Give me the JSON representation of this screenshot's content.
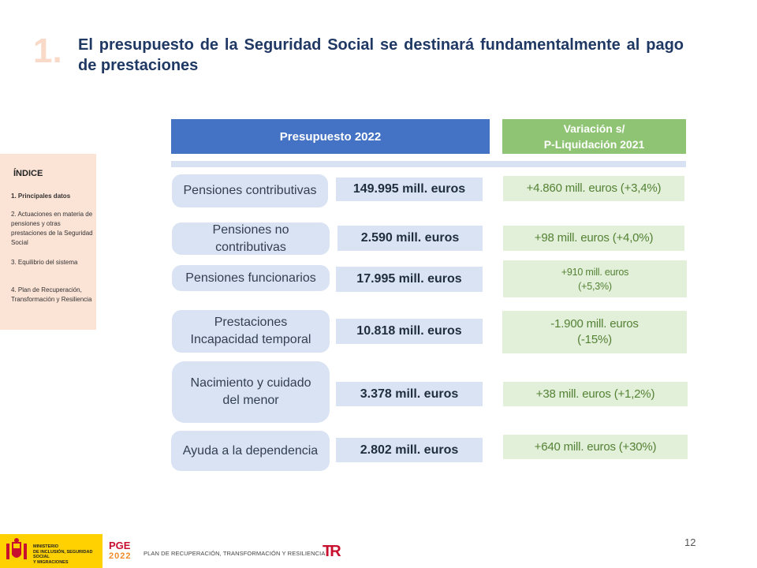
{
  "slide": {
    "number": "1.",
    "title": "El presupuesto de la Seguridad Social se destinará fundamentalmente al pago de prestaciones",
    "page_number": "12"
  },
  "table": {
    "header_budget": "Presupuesto 2022",
    "header_variation_line1": "Variación s/",
    "header_variation_line2": "P-Liquidación 2021",
    "rows": [
      {
        "label": "Pensiones contributivas",
        "value": "149.995 mill. euros",
        "variation": "+4.860 mill. euros (+3,4%)"
      },
      {
        "label": "Pensiones no contributivas",
        "value": "2.590 mill. euros",
        "variation": "+98 mill. euros (+4,0%)"
      },
      {
        "label": "Pensiones funcionarios",
        "value": "17.995 mill. euros",
        "variation_line1": "+910 mill. euros",
        "variation_line2": "(+5,3%)"
      },
      {
        "label_line1": "Prestaciones",
        "label_line2": "Incapacidad temporal",
        "value": "10.818 mill. euros",
        "variation_line1": "-1.900 mill. euros",
        "variation_line2": "(-15%)"
      },
      {
        "label": "Nacimiento y cuidado del menor",
        "value": "3.378 mill. euros",
        "variation": "+38 mill. euros (+1,2%)"
      },
      {
        "label": "Ayuda a la dependencia",
        "value": "2.802 mill. euros",
        "variation": "+640 mill. euros (+30%)"
      }
    ]
  },
  "index": {
    "title": "ÍNDICE",
    "items": [
      "1. Principales datos",
      "2. Actuaciones en materia de pensiones y otras prestaciones de la Seguridad Social",
      "3. Equilibrio del sistema",
      "4. Plan de Recuperación, Transformación y Resiliencia"
    ]
  },
  "footer": {
    "ministry_line1": "MINISTERIO",
    "ministry_line2": "DE INCLUSIÓN, SEGURIDAD SOCIAL",
    "ministry_line3": "Y MIGRACIONES",
    "pge_label": "PGE",
    "pge_year": "2022",
    "plan_text": "PLAN DE RECUPERACIÓN, TRANSFORMACIÓN Y RESILIENCIA",
    "tr_logo_text": "TR"
  },
  "colors": {
    "title": "#1f3864",
    "header_blue": "#4472c4",
    "header_green": "#8ec473",
    "label_bg": "#dae3f3",
    "variation_bg": "#e2efd9",
    "variation_text": "#548235",
    "sidebar_bg": "#fbe3d6"
  }
}
